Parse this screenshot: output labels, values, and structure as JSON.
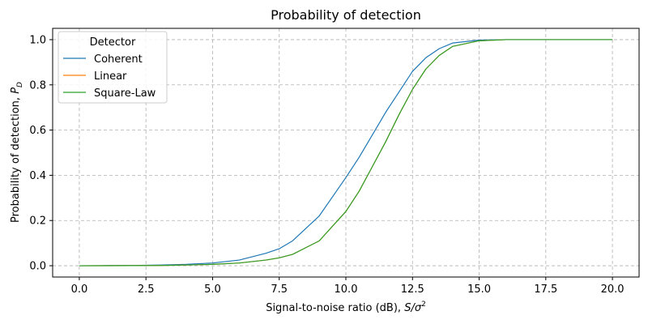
{
  "chart_data": {
    "type": "line",
    "title": "Probability of detection",
    "xlabel": {
      "text": "Signal-to-noise ratio (dB), ",
      "math": "S/σ",
      "sup": "2"
    },
    "ylabel": {
      "text": "Probability of detection, ",
      "math": "P",
      "sub": "D"
    },
    "xlim": [
      -1,
      21
    ],
    "ylim": [
      -0.05,
      1.05
    ],
    "xticks": [
      0.0,
      2.5,
      5.0,
      7.5,
      10.0,
      12.5,
      15.0,
      17.5,
      20.0
    ],
    "xtick_labels": [
      "0.0",
      "2.5",
      "5.0",
      "7.5",
      "10.0",
      "12.5",
      "15.0",
      "17.5",
      "20.0"
    ],
    "yticks": [
      0.0,
      0.2,
      0.4,
      0.6,
      0.8,
      1.0
    ],
    "ytick_labels": [
      "0.0",
      "0.2",
      "0.4",
      "0.6",
      "0.8",
      "1.0"
    ],
    "grid": true,
    "legend": {
      "title": "Detector",
      "placement": "top-left"
    },
    "series": [
      {
        "name": "Coherent",
        "color": "#1f77b4",
        "x": [
          0,
          1,
          2,
          3,
          4,
          5,
          6,
          7,
          7.5,
          8,
          9,
          10,
          10.5,
          11,
          11.5,
          12,
          12.5,
          13,
          13.5,
          14,
          15,
          16,
          17,
          18,
          19,
          20
        ],
        "y": [
          0.0,
          0.0005,
          0.001,
          0.003,
          0.006,
          0.012,
          0.025,
          0.055,
          0.075,
          0.11,
          0.22,
          0.39,
          0.48,
          0.58,
          0.68,
          0.77,
          0.86,
          0.92,
          0.96,
          0.985,
          0.998,
          1.0,
          1.0,
          1.0,
          1.0,
          1.0
        ]
      },
      {
        "name": "Linear",
        "color": "#ff7f0e",
        "x": [
          0,
          1,
          2,
          3,
          4,
          5,
          6,
          7,
          7.5,
          8,
          9,
          10,
          10.5,
          11,
          11.5,
          12,
          12.5,
          13,
          13.5,
          14,
          15,
          16,
          17,
          18,
          19,
          20
        ],
        "y": [
          0.0,
          0.0002,
          0.0005,
          0.001,
          0.003,
          0.006,
          0.012,
          0.025,
          0.035,
          0.05,
          0.11,
          0.24,
          0.33,
          0.44,
          0.55,
          0.67,
          0.78,
          0.87,
          0.93,
          0.97,
          0.995,
          1.0,
          1.0,
          1.0,
          1.0,
          1.0
        ]
      },
      {
        "name": "Square-Law",
        "color": "#2ca02c",
        "x": [
          0,
          1,
          2,
          3,
          4,
          5,
          6,
          7,
          7.5,
          8,
          9,
          10,
          10.5,
          11,
          11.5,
          12,
          12.5,
          13,
          13.5,
          14,
          15,
          16,
          17,
          18,
          19,
          20
        ],
        "y": [
          0.0,
          0.0002,
          0.0005,
          0.001,
          0.003,
          0.006,
          0.012,
          0.025,
          0.035,
          0.05,
          0.11,
          0.24,
          0.33,
          0.44,
          0.55,
          0.67,
          0.78,
          0.87,
          0.93,
          0.97,
          0.995,
          1.0,
          1.0,
          1.0,
          1.0,
          1.0
        ]
      }
    ]
  }
}
